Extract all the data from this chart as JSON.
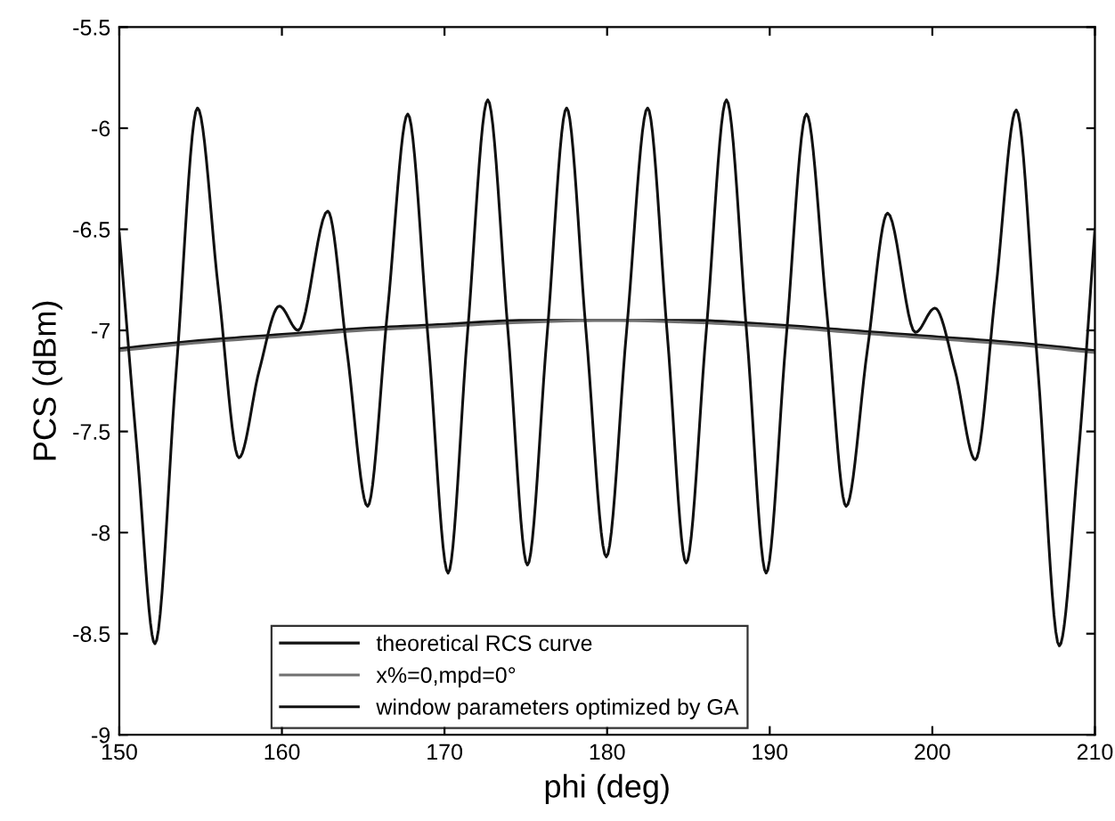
{
  "chart_data": {
    "type": "line",
    "xlabel": "phi (deg)",
    "ylabel": "PCS (dBm)",
    "xlim": [
      150,
      210
    ],
    "ylim": [
      -9,
      -5.5
    ],
    "xticks": [
      150,
      160,
      170,
      180,
      190,
      200,
      210
    ],
    "yticks": [
      -9,
      -8.5,
      -8,
      -7.5,
      -7,
      -6.5,
      -6,
      -5.5
    ],
    "grid": false,
    "legend": "bottom",
    "marker": "none",
    "line_style": "solid",
    "series": [
      {
        "name": "theoretical RCS curve",
        "color": "#111111",
        "x": [
          150,
          151.1,
          152.19,
          153.5,
          154.81,
          156.1,
          157.36,
          158.6,
          159.84,
          161.0,
          162.82,
          164.0,
          165.27,
          166.5,
          167.74,
          169.0,
          170.22,
          171.4,
          172.66,
          173.9,
          175.1,
          176.3,
          177.51,
          178.7,
          179.95,
          181.2,
          182.49,
          183.7,
          184.86,
          186.1,
          187.34,
          188.6,
          189.78,
          191.0,
          192.26,
          193.5,
          194.7,
          196.0,
          197.25,
          198.96,
          200.16,
          201.4,
          202.64,
          203.9,
          205.16,
          206.5,
          207.81,
          209.0,
          210
        ],
        "values": [
          -6.52,
          -7.6,
          -8.55,
          -7.2,
          -5.9,
          -6.8,
          -7.63,
          -7.2,
          -6.88,
          -7.0,
          -6.41,
          -7.1,
          -7.87,
          -6.9,
          -5.93,
          -7.05,
          -8.2,
          -7.03,
          -5.86,
          -7.0,
          -8.16,
          -7.03,
          -5.9,
          -7.0,
          -8.12,
          -7.0,
          -5.9,
          -7.02,
          -8.15,
          -7.0,
          -5.86,
          -7.03,
          -8.2,
          -7.05,
          -5.93,
          -6.9,
          -7.87,
          -7.1,
          -6.42,
          -7.01,
          -6.89,
          -7.2,
          -7.64,
          -6.8,
          -5.91,
          -7.2,
          -8.56,
          -7.6,
          -6.5
        ]
      },
      {
        "name": "x%=0,mpd=0°",
        "color": "#707070",
        "x": [
          150,
          155,
          160,
          165,
          170,
          175,
          180,
          185,
          190,
          195,
          200,
          205,
          210
        ],
        "values": [
          -7.1,
          -7.06,
          -7.03,
          -7.0,
          -6.98,
          -6.96,
          -6.95,
          -6.96,
          -6.98,
          -7.01,
          -7.04,
          -7.07,
          -7.11
        ]
      },
      {
        "name": "window parameters optimized by GA",
        "color": "#111111",
        "x": [
          150,
          155,
          160,
          165,
          170,
          175,
          180,
          185,
          190,
          195,
          200,
          205,
          210
        ],
        "values": [
          -7.09,
          -7.05,
          -7.02,
          -6.99,
          -6.97,
          -6.95,
          -6.95,
          -6.95,
          -6.97,
          -7.0,
          -7.03,
          -7.06,
          -7.1
        ]
      }
    ]
  }
}
